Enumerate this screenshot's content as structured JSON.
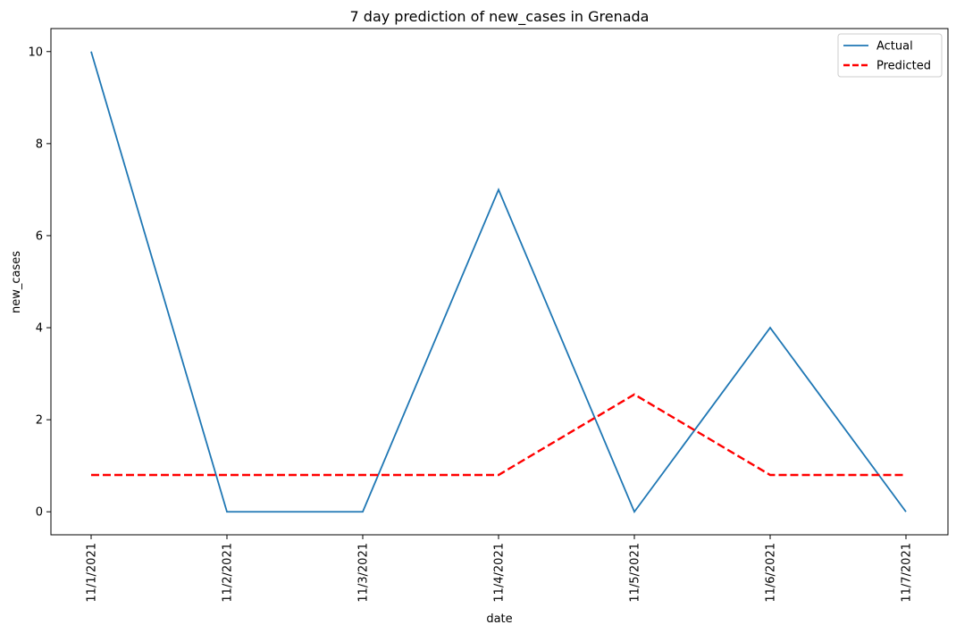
{
  "chart_data": {
    "type": "line",
    "title": "7 day prediction of new_cases in Grenada",
    "xlabel": "date",
    "ylabel": "new_cases",
    "categories": [
      "11/1/2021",
      "11/2/2021",
      "11/3/2021",
      "11/4/2021",
      "11/5/2021",
      "11/6/2021",
      "11/7/2021"
    ],
    "ylim": [
      -0.5,
      10.5
    ],
    "yticks": [
      0,
      2,
      4,
      6,
      8,
      10
    ],
    "grid": false,
    "legend_position": "top-right",
    "series": [
      {
        "name": "Actual",
        "values": [
          10,
          0,
          0,
          7,
          0,
          4,
          0
        ],
        "color": "#1f77b4",
        "style": "solid"
      },
      {
        "name": "Predicted",
        "values": [
          0.8,
          0.8,
          0.8,
          0.8,
          2.55,
          0.8,
          0.8
        ],
        "color": "#ff0000",
        "style": "dashed"
      }
    ]
  }
}
